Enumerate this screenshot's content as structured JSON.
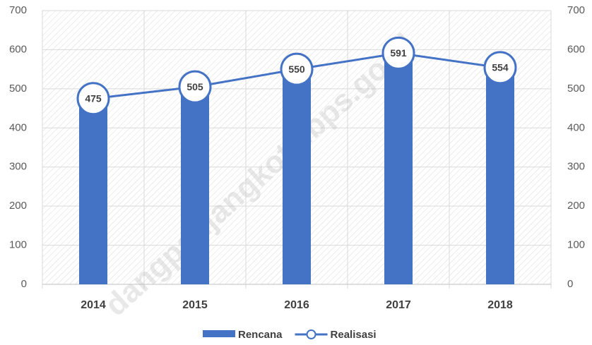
{
  "chart_data": {
    "type": "combo",
    "categories": [
      "2014",
      "2015",
      "2016",
      "2017",
      "2018"
    ],
    "series": [
      {
        "name": "Rencana",
        "type": "bar",
        "color": "#4472c4",
        "values": [
          460,
          495,
          540,
          580,
          545
        ]
      },
      {
        "name": "Realisasi",
        "type": "line",
        "axis": "y2",
        "color": "#4472c4",
        "values": [
          475,
          505,
          550,
          591,
          554
        ]
      }
    ],
    "ylim": [
      0,
      700
    ],
    "yticks": [
      0,
      100,
      200,
      300,
      400,
      500,
      600,
      700
    ],
    "y2lim": [
      0,
      700
    ],
    "y2ticks": [
      0,
      100,
      200,
      300,
      400,
      500,
      600,
      700
    ],
    "grid": true,
    "legend": "bottom",
    "watermark": "dangpanjangkota.bps.go.id"
  }
}
